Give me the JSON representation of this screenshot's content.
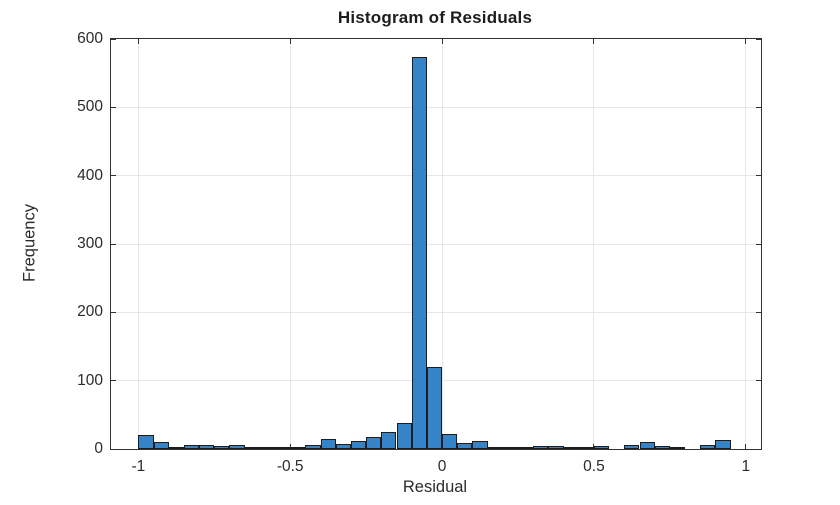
{
  "chart_data": {
    "type": "bar",
    "chart_kind": "histogram",
    "title": "Histogram of Residuals",
    "xlabel": "Residual",
    "ylabel": "Frequency",
    "xlim": [
      -1.09,
      1.05
    ],
    "ylim": [
      0,
      600
    ],
    "grid": true,
    "x_ticks": [
      -1,
      -0.5,
      0,
      0.5,
      1
    ],
    "x_tick_labels": [
      "-1",
      "-0.5",
      "0",
      "0.5",
      "1"
    ],
    "y_ticks": [
      0,
      100,
      200,
      300,
      400,
      500,
      600
    ],
    "y_tick_labels": [
      "0",
      "100",
      "200",
      "300",
      "400",
      "500",
      "600"
    ],
    "bin_start": -1,
    "bin_width": 0.05,
    "counts": [
      20,
      10,
      3,
      6,
      6,
      4,
      6,
      1,
      3,
      3,
      2,
      6,
      15,
      7,
      12,
      18,
      25,
      38,
      573,
      120,
      22,
      9,
      12,
      1,
      1,
      1,
      4,
      4,
      3,
      3,
      4,
      0,
      6,
      10,
      5,
      3,
      0,
      6,
      13,
      0
    ],
    "colors": {
      "bar_fill": "#3484C7",
      "bar_edge": "#1A1D21",
      "grid": "#E6E6E6",
      "axis": "#333333",
      "text": "#2B2B2B"
    }
  }
}
